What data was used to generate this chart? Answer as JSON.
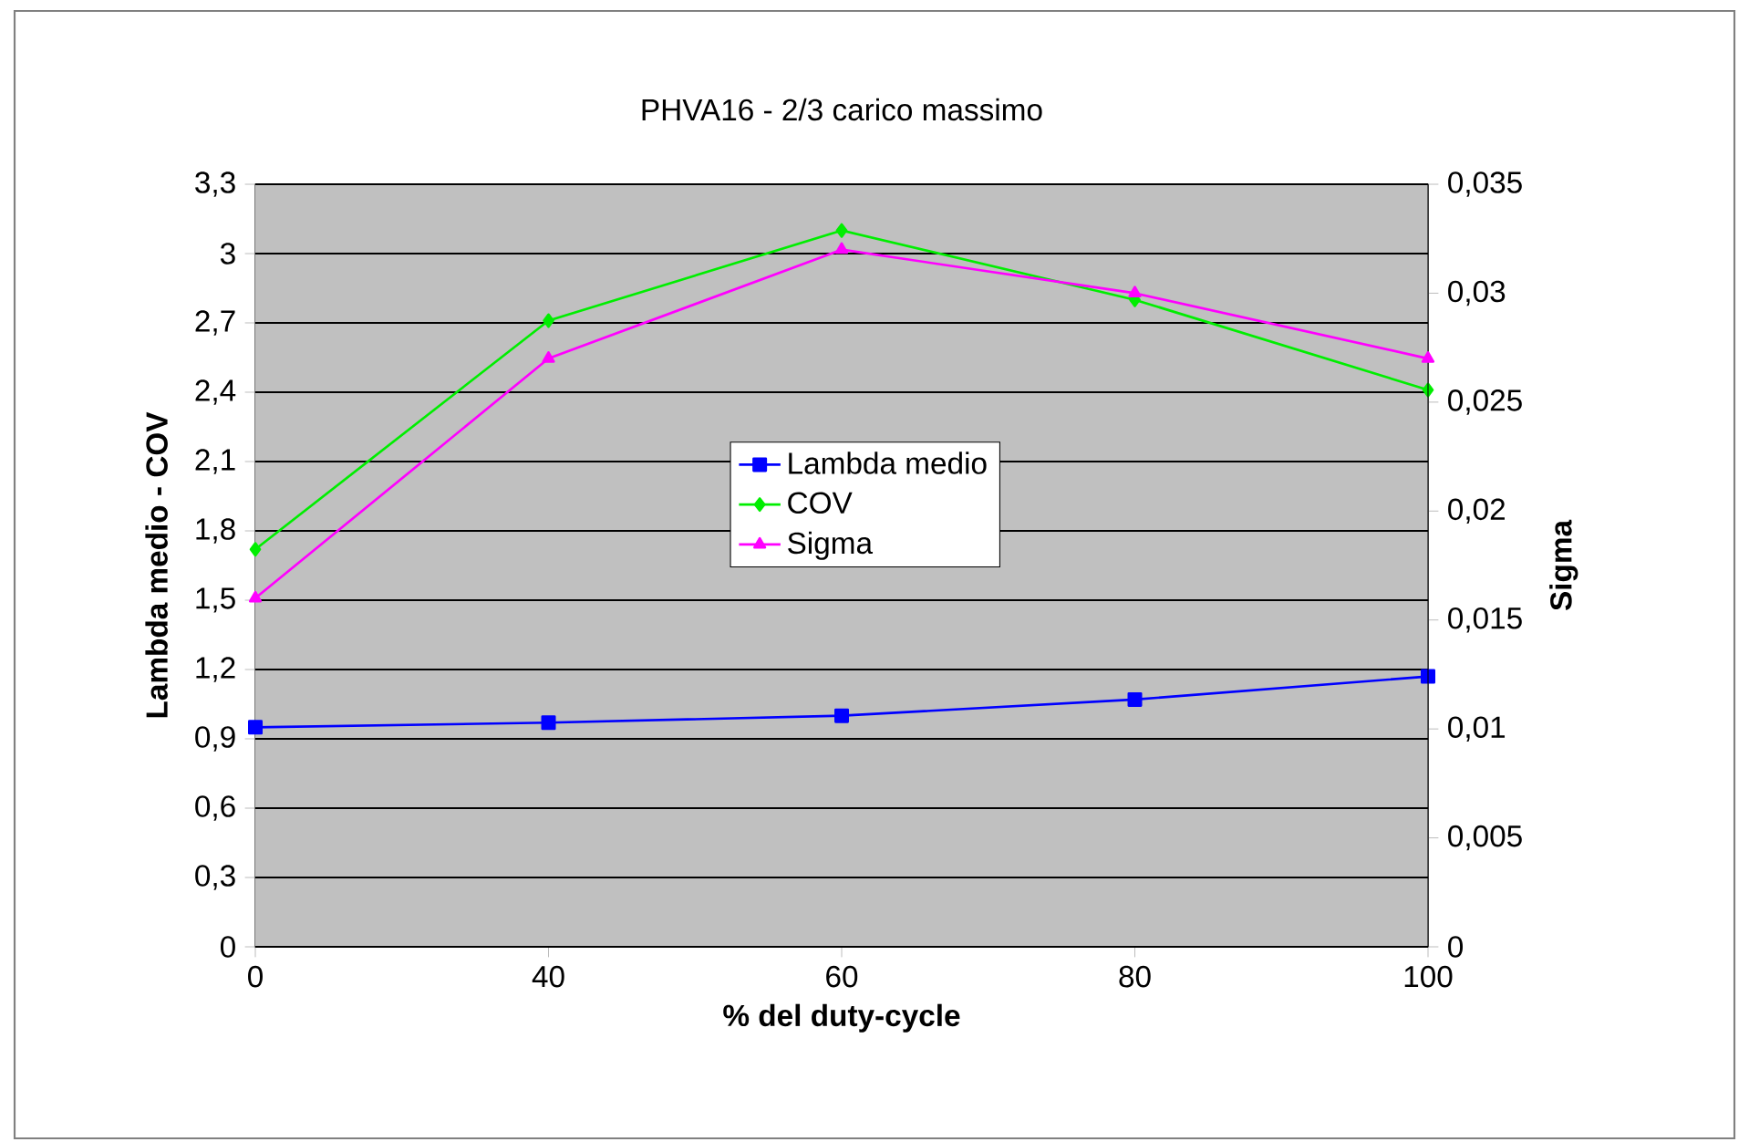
{
  "chart_data": {
    "type": "line",
    "title": "PHVA16 - 2/3 carico massimo",
    "xlabel": "% del duty-cycle",
    "ylabel": "Lambda medio - COV",
    "y2label": "Sigma",
    "categories": [
      "0",
      "40",
      "60",
      "80",
      "100"
    ],
    "series": [
      {
        "name": "Lambda medio",
        "color": "#0000ff",
        "marker": "square",
        "values": [
          0.95,
          0.97,
          1.0,
          1.07,
          1.17
        ]
      },
      {
        "name": "COV",
        "color": "#00ee00",
        "marker": "diamond",
        "values": [
          1.72,
          2.71,
          3.1,
          2.8,
          2.41
        ]
      },
      {
        "name": "Sigma",
        "color": "#ff00ff",
        "marker": "triangle",
        "axis": "y2",
        "values": [
          0.016,
          0.027,
          0.032,
          0.03,
          0.027
        ]
      }
    ],
    "ylim": [
      0,
      3.3
    ],
    "yticks": [
      0,
      {
        "value": 0.3,
        "label": "0,3"
      },
      {
        "value": 0.6,
        "label": "0,6"
      },
      {
        "value": 0.9,
        "label": "0,9"
      },
      {
        "value": 1.2,
        "label": "1,2"
      },
      {
        "value": 1.5,
        "label": "1,5"
      },
      {
        "value": 1.8,
        "label": "1,8"
      },
      {
        "value": 2.1,
        "label": "2,1"
      },
      {
        "value": 2.4,
        "label": "2,4"
      },
      {
        "value": 2.7,
        "label": "2,7"
      },
      3,
      {
        "value": 3.3,
        "label": "3,3"
      }
    ],
    "y2lim": [
      0,
      0.035
    ],
    "y2ticks": [
      0,
      {
        "value": 0.005,
        "label": "0,005"
      },
      {
        "value": 0.01,
        "label": "0,01"
      },
      {
        "value": 0.015,
        "label": "0,015"
      },
      {
        "value": 0.02,
        "label": "0,02"
      },
      {
        "value": 0.025,
        "label": "0,025"
      },
      {
        "value": 0.03,
        "label": "0,03"
      },
      {
        "value": 0.035,
        "label": "0,035"
      }
    ],
    "grid": "y",
    "legend": "center",
    "line_style": "solid"
  }
}
